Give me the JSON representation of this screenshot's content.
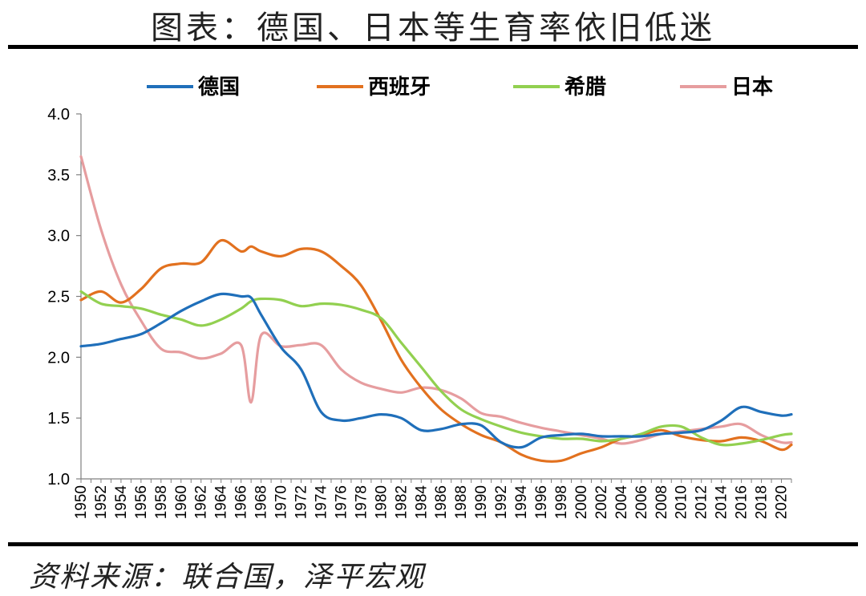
{
  "title": "图表：德国、日本等生育率依旧低迷",
  "source": "资料来源：联合国，泽平宏观",
  "chart_data": {
    "type": "line",
    "title": "图表：德国、日本等生育率依旧低迷",
    "xlabel": "",
    "ylabel": "",
    "ylim": [
      1.0,
      4.0
    ],
    "yticks": [
      "1.0",
      "1.5",
      "2.0",
      "2.5",
      "3.0",
      "3.5",
      "4.0"
    ],
    "xlim": [
      1950,
      2021
    ],
    "xtick_labels": [
      "1950",
      "1952",
      "1954",
      "1956",
      "1958",
      "1960",
      "1962",
      "1964",
      "1966",
      "1968",
      "1970",
      "1972",
      "1974",
      "1976",
      "1978",
      "1980",
      "1982",
      "1984",
      "1986",
      "1988",
      "1990",
      "1992",
      "1994",
      "1996",
      "1998",
      "2000",
      "2002",
      "2004",
      "2006",
      "2008",
      "2010",
      "2012",
      "2014",
      "2016",
      "2018",
      "2020"
    ],
    "grid": false,
    "legend_position": "top",
    "x": [
      1950,
      1952,
      1954,
      1956,
      1958,
      1960,
      1962,
      1964,
      1966,
      1967,
      1968,
      1970,
      1972,
      1974,
      1976,
      1978,
      1980,
      1982,
      1984,
      1986,
      1988,
      1990,
      1992,
      1994,
      1996,
      1998,
      2000,
      2002,
      2004,
      2006,
      2008,
      2010,
      2012,
      2014,
      2016,
      2018,
      2020,
      2021
    ],
    "series": [
      {
        "name": "德国",
        "color": "#1f6fba",
        "values": [
          2.09,
          2.11,
          2.15,
          2.19,
          2.28,
          2.38,
          2.46,
          2.52,
          2.5,
          2.49,
          2.35,
          2.08,
          1.9,
          1.55,
          1.48,
          1.5,
          1.53,
          1.5,
          1.4,
          1.41,
          1.45,
          1.44,
          1.3,
          1.26,
          1.34,
          1.36,
          1.37,
          1.35,
          1.35,
          1.35,
          1.37,
          1.38,
          1.4,
          1.48,
          1.59,
          1.55,
          1.52,
          1.53
        ]
      },
      {
        "name": "西班牙",
        "color": "#e2711f",
        "values": [
          2.47,
          2.54,
          2.45,
          2.56,
          2.73,
          2.77,
          2.78,
          2.96,
          2.87,
          2.91,
          2.87,
          2.83,
          2.89,
          2.87,
          2.75,
          2.59,
          2.3,
          1.98,
          1.75,
          1.57,
          1.45,
          1.36,
          1.3,
          1.2,
          1.15,
          1.15,
          1.21,
          1.26,
          1.33,
          1.36,
          1.4,
          1.35,
          1.32,
          1.31,
          1.34,
          1.31,
          1.24,
          1.28
        ]
      },
      {
        "name": "希腊",
        "color": "#92d050",
        "values": [
          2.54,
          2.44,
          2.42,
          2.4,
          2.35,
          2.31,
          2.26,
          2.31,
          2.4,
          2.46,
          2.48,
          2.47,
          2.42,
          2.44,
          2.43,
          2.39,
          2.32,
          2.12,
          1.92,
          1.72,
          1.57,
          1.49,
          1.43,
          1.38,
          1.35,
          1.33,
          1.33,
          1.31,
          1.33,
          1.37,
          1.43,
          1.43,
          1.34,
          1.28,
          1.29,
          1.32,
          1.36,
          1.37
        ]
      },
      {
        "name": "日本",
        "color": "#e69d9f",
        "values": [
          3.65,
          3.05,
          2.6,
          2.3,
          2.07,
          2.04,
          1.99,
          2.03,
          2.1,
          1.63,
          2.18,
          2.09,
          2.1,
          2.1,
          1.9,
          1.79,
          1.74,
          1.71,
          1.75,
          1.73,
          1.66,
          1.54,
          1.51,
          1.46,
          1.42,
          1.39,
          1.36,
          1.33,
          1.29,
          1.32,
          1.37,
          1.39,
          1.41,
          1.43,
          1.45,
          1.36,
          1.3,
          1.3
        ]
      }
    ]
  }
}
